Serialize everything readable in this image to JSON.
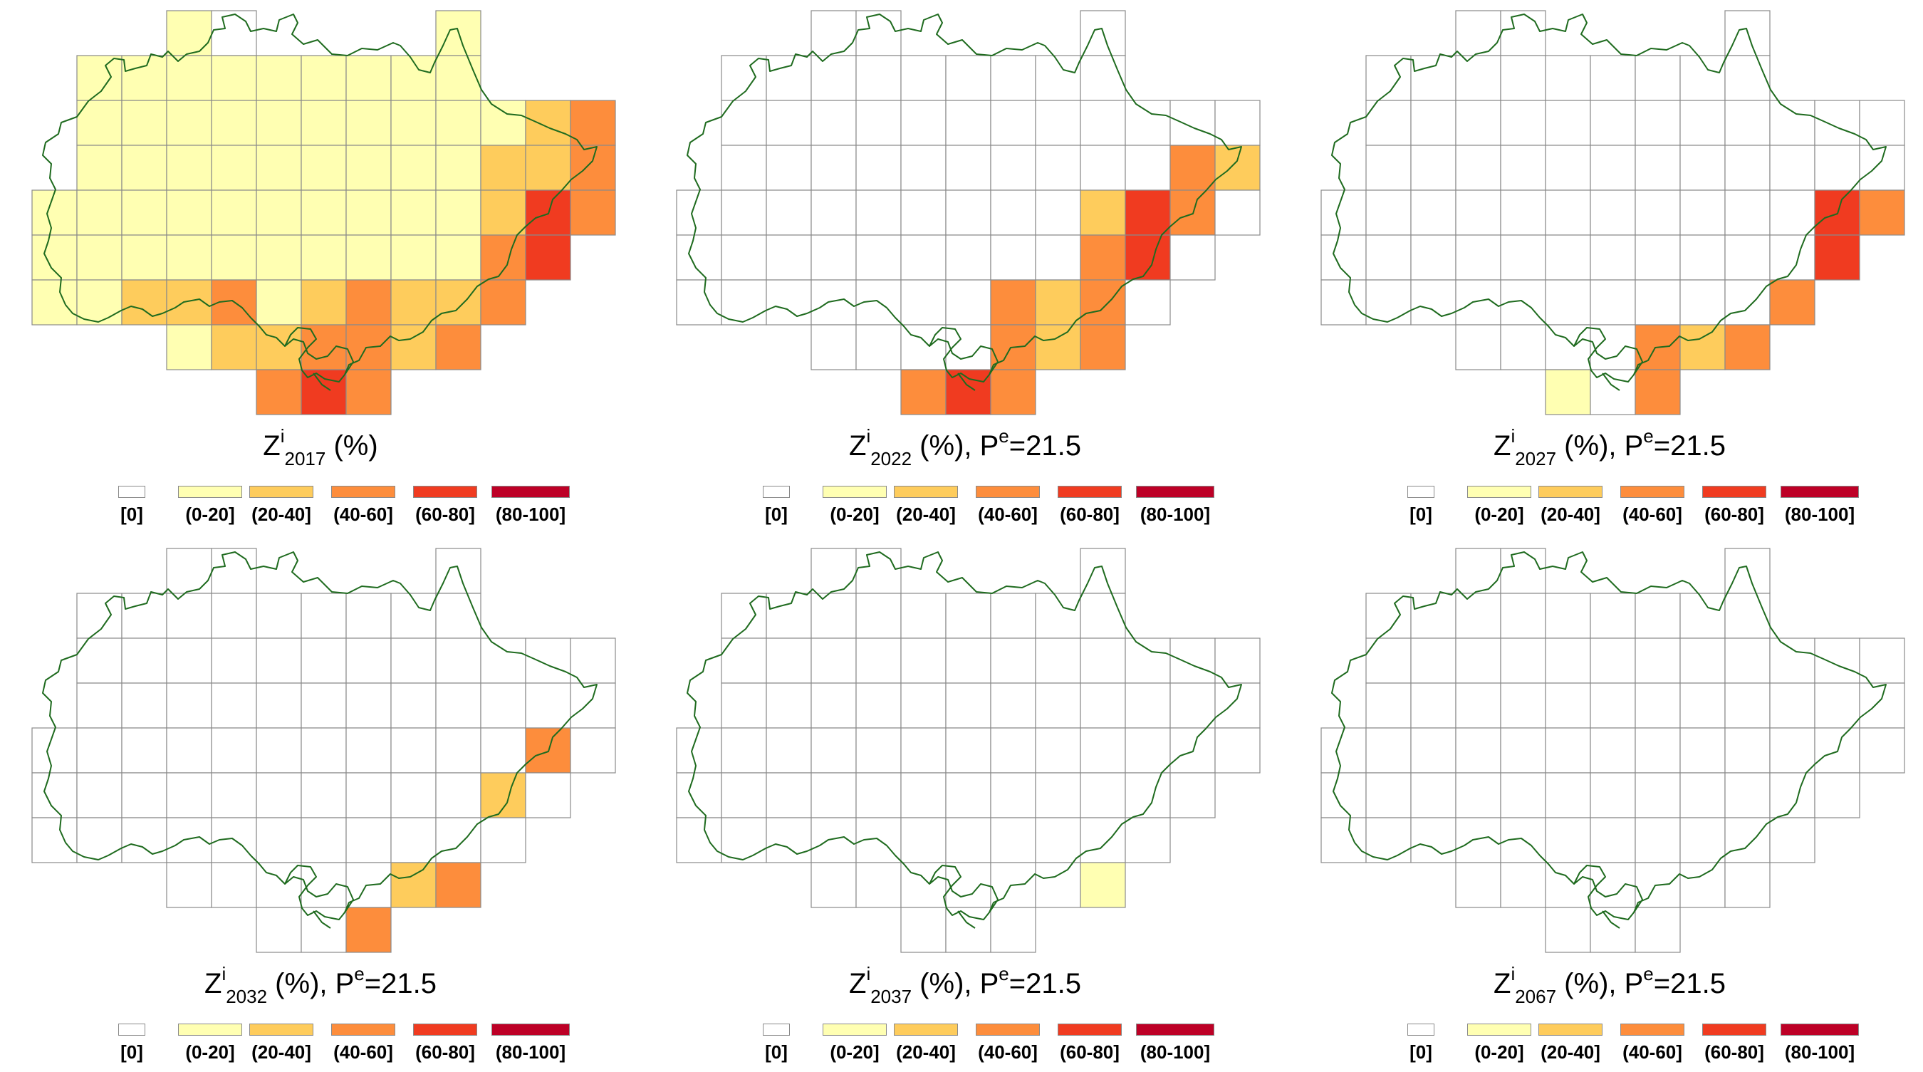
{
  "colors": {
    "c0": "#ffffff",
    "c1": "#ffffb2",
    "c2": "#fecc5c",
    "c3": "#fd8d3c",
    "c4": "#f03b20",
    "c5": "#bd0026",
    "grid": "#8a8a8a",
    "border": "#1f6b1f"
  },
  "legend": {
    "items": [
      {
        "label": "[0]",
        "color": "#ffffff"
      },
      {
        "label": "(0-20]",
        "color": "#ffffb2"
      },
      {
        "label": "(20-40]",
        "color": "#fecc5c"
      },
      {
        "label": "(40-60]",
        "color": "#fd8d3c"
      },
      {
        "label": "(60-80]",
        "color": "#f03b20"
      },
      {
        "label": "(80-100]",
        "color": "#bd0026"
      }
    ]
  },
  "panels": [
    {
      "caption": {
        "symbol": "Z",
        "superscript": "i",
        "subscript": "2017",
        "unit": " (%)",
        "pe_label": "",
        "pe_superscript": "",
        "pe_value": ""
      },
      "classes": [
        [
          0,
          0,
          0,
          1,
          0,
          0,
          0,
          0,
          0,
          1,
          0,
          0,
          0
        ],
        [
          0,
          1,
          1,
          1,
          1,
          1,
          1,
          1,
          1,
          1,
          0,
          0,
          0
        ],
        [
          0,
          1,
          1,
          1,
          1,
          1,
          1,
          1,
          1,
          1,
          1,
          2,
          3
        ],
        [
          0,
          1,
          1,
          1,
          1,
          1,
          1,
          1,
          1,
          1,
          2,
          2,
          3
        ],
        [
          1,
          1,
          1,
          1,
          1,
          1,
          1,
          1,
          1,
          1,
          2,
          4,
          3
        ],
        [
          1,
          1,
          1,
          1,
          1,
          1,
          1,
          1,
          1,
          1,
          3,
          4,
          0
        ],
        [
          1,
          1,
          2,
          2,
          3,
          1,
          2,
          3,
          2,
          2,
          3,
          0,
          0
        ],
        [
          0,
          0,
          0,
          1,
          2,
          2,
          3,
          3,
          2,
          3,
          0,
          0,
          0
        ],
        [
          0,
          0,
          0,
          0,
          0,
          3,
          4,
          3,
          0,
          0,
          0,
          0,
          0
        ]
      ]
    },
    {
      "caption": {
        "symbol": "Z",
        "superscript": "i",
        "subscript": "2022",
        "unit": " (%), ",
        "pe_label": "P",
        "pe_superscript": "e",
        "pe_value": "=21.5"
      },
      "classes": [
        [
          0,
          0,
          0,
          0,
          0,
          0,
          0,
          0,
          0,
          0,
          0,
          0,
          0
        ],
        [
          0,
          0,
          0,
          0,
          0,
          0,
          0,
          0,
          0,
          0,
          0,
          0,
          0
        ],
        [
          0,
          0,
          0,
          0,
          0,
          0,
          0,
          0,
          0,
          0,
          0,
          0,
          0
        ],
        [
          0,
          0,
          0,
          0,
          0,
          0,
          0,
          0,
          0,
          0,
          0,
          3,
          2
        ],
        [
          0,
          0,
          0,
          0,
          0,
          0,
          0,
          0,
          0,
          2,
          4,
          3,
          0
        ],
        [
          0,
          0,
          0,
          0,
          0,
          0,
          0,
          0,
          0,
          3,
          4,
          0,
          0
        ],
        [
          0,
          0,
          0,
          0,
          0,
          0,
          0,
          3,
          2,
          3,
          0,
          0,
          0
        ],
        [
          0,
          0,
          0,
          0,
          0,
          0,
          0,
          3,
          2,
          3,
          0,
          0,
          0
        ],
        [
          0,
          0,
          0,
          0,
          0,
          3,
          4,
          3,
          0,
          0,
          0,
          0,
          0
        ]
      ]
    },
    {
      "caption": {
        "symbol": "Z",
        "superscript": "i",
        "subscript": "2027",
        "unit": " (%), ",
        "pe_label": "P",
        "pe_superscript": "e",
        "pe_value": "=21.5"
      },
      "classes": [
        [
          0,
          0,
          0,
          0,
          0,
          0,
          0,
          0,
          0,
          0,
          0,
          0,
          0
        ],
        [
          0,
          0,
          0,
          0,
          0,
          0,
          0,
          0,
          0,
          0,
          0,
          0,
          0
        ],
        [
          0,
          0,
          0,
          0,
          0,
          0,
          0,
          0,
          0,
          0,
          0,
          0,
          0
        ],
        [
          0,
          0,
          0,
          0,
          0,
          0,
          0,
          0,
          0,
          0,
          0,
          0,
          0
        ],
        [
          0,
          0,
          0,
          0,
          0,
          0,
          0,
          0,
          0,
          0,
          0,
          4,
          3
        ],
        [
          0,
          0,
          0,
          0,
          0,
          0,
          0,
          0,
          0,
          0,
          0,
          4,
          0
        ],
        [
          0,
          0,
          0,
          0,
          0,
          0,
          0,
          0,
          0,
          0,
          3,
          0,
          0
        ],
        [
          0,
          0,
          0,
          0,
          0,
          0,
          0,
          3,
          2,
          3,
          0,
          0,
          0
        ],
        [
          0,
          0,
          0,
          0,
          0,
          1,
          0,
          3,
          0,
          0,
          0,
          0,
          0
        ]
      ]
    },
    {
      "caption": {
        "symbol": "Z",
        "superscript": "i",
        "subscript": "2032",
        "unit": " (%), ",
        "pe_label": "P",
        "pe_superscript": "e",
        "pe_value": "=21.5"
      },
      "classes": [
        [
          0,
          0,
          0,
          0,
          0,
          0,
          0,
          0,
          0,
          0,
          0,
          0,
          0
        ],
        [
          0,
          0,
          0,
          0,
          0,
          0,
          0,
          0,
          0,
          0,
          0,
          0,
          0
        ],
        [
          0,
          0,
          0,
          0,
          0,
          0,
          0,
          0,
          0,
          0,
          0,
          0,
          0
        ],
        [
          0,
          0,
          0,
          0,
          0,
          0,
          0,
          0,
          0,
          0,
          0,
          0,
          0
        ],
        [
          0,
          0,
          0,
          0,
          0,
          0,
          0,
          0,
          0,
          0,
          0,
          3,
          0
        ],
        [
          0,
          0,
          0,
          0,
          0,
          0,
          0,
          0,
          0,
          0,
          2,
          0,
          0
        ],
        [
          0,
          0,
          0,
          0,
          0,
          0,
          0,
          0,
          0,
          0,
          0,
          0,
          0
        ],
        [
          0,
          0,
          0,
          0,
          0,
          0,
          0,
          0,
          2,
          3,
          0,
          0,
          0
        ],
        [
          0,
          0,
          0,
          0,
          0,
          0,
          0,
          3,
          0,
          0,
          0,
          0,
          0
        ]
      ]
    },
    {
      "caption": {
        "symbol": "Z",
        "superscript": "i",
        "subscript": "2037",
        "unit": " (%), ",
        "pe_label": "P",
        "pe_superscript": "e",
        "pe_value": "=21.5"
      },
      "classes": [
        [
          0,
          0,
          0,
          0,
          0,
          0,
          0,
          0,
          0,
          0,
          0,
          0,
          0
        ],
        [
          0,
          0,
          0,
          0,
          0,
          0,
          0,
          0,
          0,
          0,
          0,
          0,
          0
        ],
        [
          0,
          0,
          0,
          0,
          0,
          0,
          0,
          0,
          0,
          0,
          0,
          0,
          0
        ],
        [
          0,
          0,
          0,
          0,
          0,
          0,
          0,
          0,
          0,
          0,
          0,
          0,
          0
        ],
        [
          0,
          0,
          0,
          0,
          0,
          0,
          0,
          0,
          0,
          0,
          0,
          0,
          0
        ],
        [
          0,
          0,
          0,
          0,
          0,
          0,
          0,
          0,
          0,
          0,
          0,
          0,
          0
        ],
        [
          0,
          0,
          0,
          0,
          0,
          0,
          0,
          0,
          0,
          0,
          0,
          0,
          0
        ],
        [
          0,
          0,
          0,
          0,
          0,
          0,
          0,
          0,
          0,
          1,
          0,
          0,
          0
        ],
        [
          0,
          0,
          0,
          0,
          0,
          0,
          0,
          0,
          0,
          0,
          0,
          0,
          0
        ]
      ]
    },
    {
      "caption": {
        "symbol": "Z",
        "superscript": "i",
        "subscript": "2067",
        "unit": " (%), ",
        "pe_label": "P",
        "pe_superscript": "e",
        "pe_value": "=21.5"
      },
      "classes": [
        [
          0,
          0,
          0,
          0,
          0,
          0,
          0,
          0,
          0,
          0,
          0,
          0,
          0
        ],
        [
          0,
          0,
          0,
          0,
          0,
          0,
          0,
          0,
          0,
          0,
          0,
          0,
          0
        ],
        [
          0,
          0,
          0,
          0,
          0,
          0,
          0,
          0,
          0,
          0,
          0,
          0,
          0
        ],
        [
          0,
          0,
          0,
          0,
          0,
          0,
          0,
          0,
          0,
          0,
          0,
          0,
          0
        ],
        [
          0,
          0,
          0,
          0,
          0,
          0,
          0,
          0,
          0,
          0,
          0,
          0,
          0
        ],
        [
          0,
          0,
          0,
          0,
          0,
          0,
          0,
          0,
          0,
          0,
          0,
          0,
          0
        ],
        [
          0,
          0,
          0,
          0,
          0,
          0,
          0,
          0,
          0,
          0,
          0,
          0,
          0
        ],
        [
          0,
          0,
          0,
          0,
          0,
          0,
          0,
          0,
          0,
          0,
          0,
          0,
          0
        ],
        [
          0,
          0,
          0,
          0,
          0,
          0,
          0,
          0,
          0,
          0,
          0,
          0,
          0
        ]
      ]
    }
  ]
}
